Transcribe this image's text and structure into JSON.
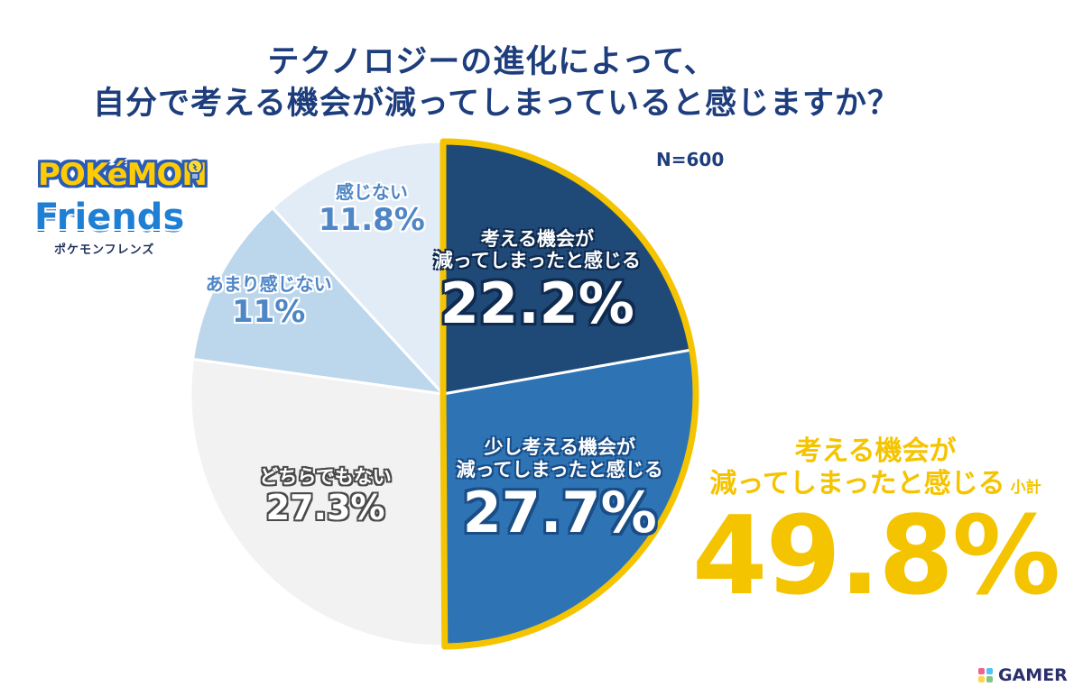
{
  "title_line1": "テクノロジーの進化によって、",
  "title_line2": "自分で考える機会が減ってしまっていると感じますか？",
  "n_label": "N=600",
  "logo": {
    "brand": "POKéMON",
    "product": "Friends",
    "kana": "ポケモンフレンズ"
  },
  "watermark": "GAMER",
  "colors": {
    "title": "#1d3d7c",
    "highlight": "#f5c400",
    "slice_dark": "#1f4a78",
    "slice_mid": "#2e74b5",
    "slice_gray": "#f2f2f2",
    "slice_light_blue": "#bcd6ec",
    "slice_pale_blue": "#e2ecf7"
  },
  "chart_data": {
    "type": "pie",
    "slices": [
      {
        "label_lines": [
          "考える機会が",
          "減ってしまったと感じる"
        ],
        "value": 22.2,
        "display": "22.2%",
        "color": "#1f4a78",
        "style": "dark",
        "highlight": true
      },
      {
        "label_lines": [
          "少し考える機会が",
          "減ってしまったと感じる"
        ],
        "value": 27.7,
        "display": "27.7%",
        "color": "#2e74b5",
        "style": "mid",
        "highlight": true
      },
      {
        "label_lines": [
          "どちらでもない"
        ],
        "value": 27.3,
        "display": "27.3%",
        "color": "#f2f2f2",
        "style": "gray",
        "highlight": false
      },
      {
        "label_lines": [
          "あまり感じない"
        ],
        "value": 11,
        "display": "11%",
        "color": "#bcd6ec",
        "style": "blue",
        "highlight": false
      },
      {
        "label_lines": [
          "感じない"
        ],
        "value": 11.8,
        "display": "11.8%",
        "color": "#e2ecf7",
        "style": "blue",
        "highlight": false
      }
    ],
    "start": "12 o'clock",
    "direction": "clockwise",
    "highlight_outline": "#f5c400"
  },
  "subtotal": {
    "line1": "考える機会が",
    "line2": "減ってしまったと感じる",
    "suffix": "小計",
    "value": "49.8%"
  }
}
